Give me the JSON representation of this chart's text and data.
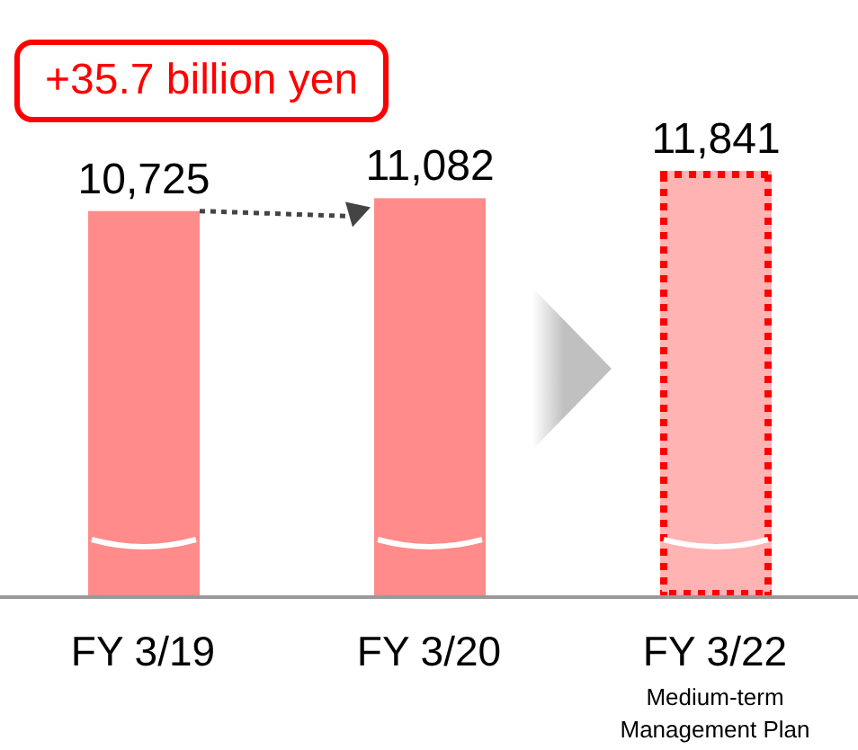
{
  "chart_data": {
    "type": "bar",
    "categories": [
      "FY 3/19",
      "FY 3/20",
      "FY 3/22"
    ],
    "values": [
      10725,
      11082,
      11841
    ],
    "colors": [
      "#ff8b8b",
      "#ff8b8b",
      "#ffb3b3"
    ],
    "value_labels": [
      "10,725",
      "11,082",
      "11,841"
    ],
    "annotations": [
      "+35.7 billion yen",
      "Medium-term Management Plan"
    ]
  }
}
